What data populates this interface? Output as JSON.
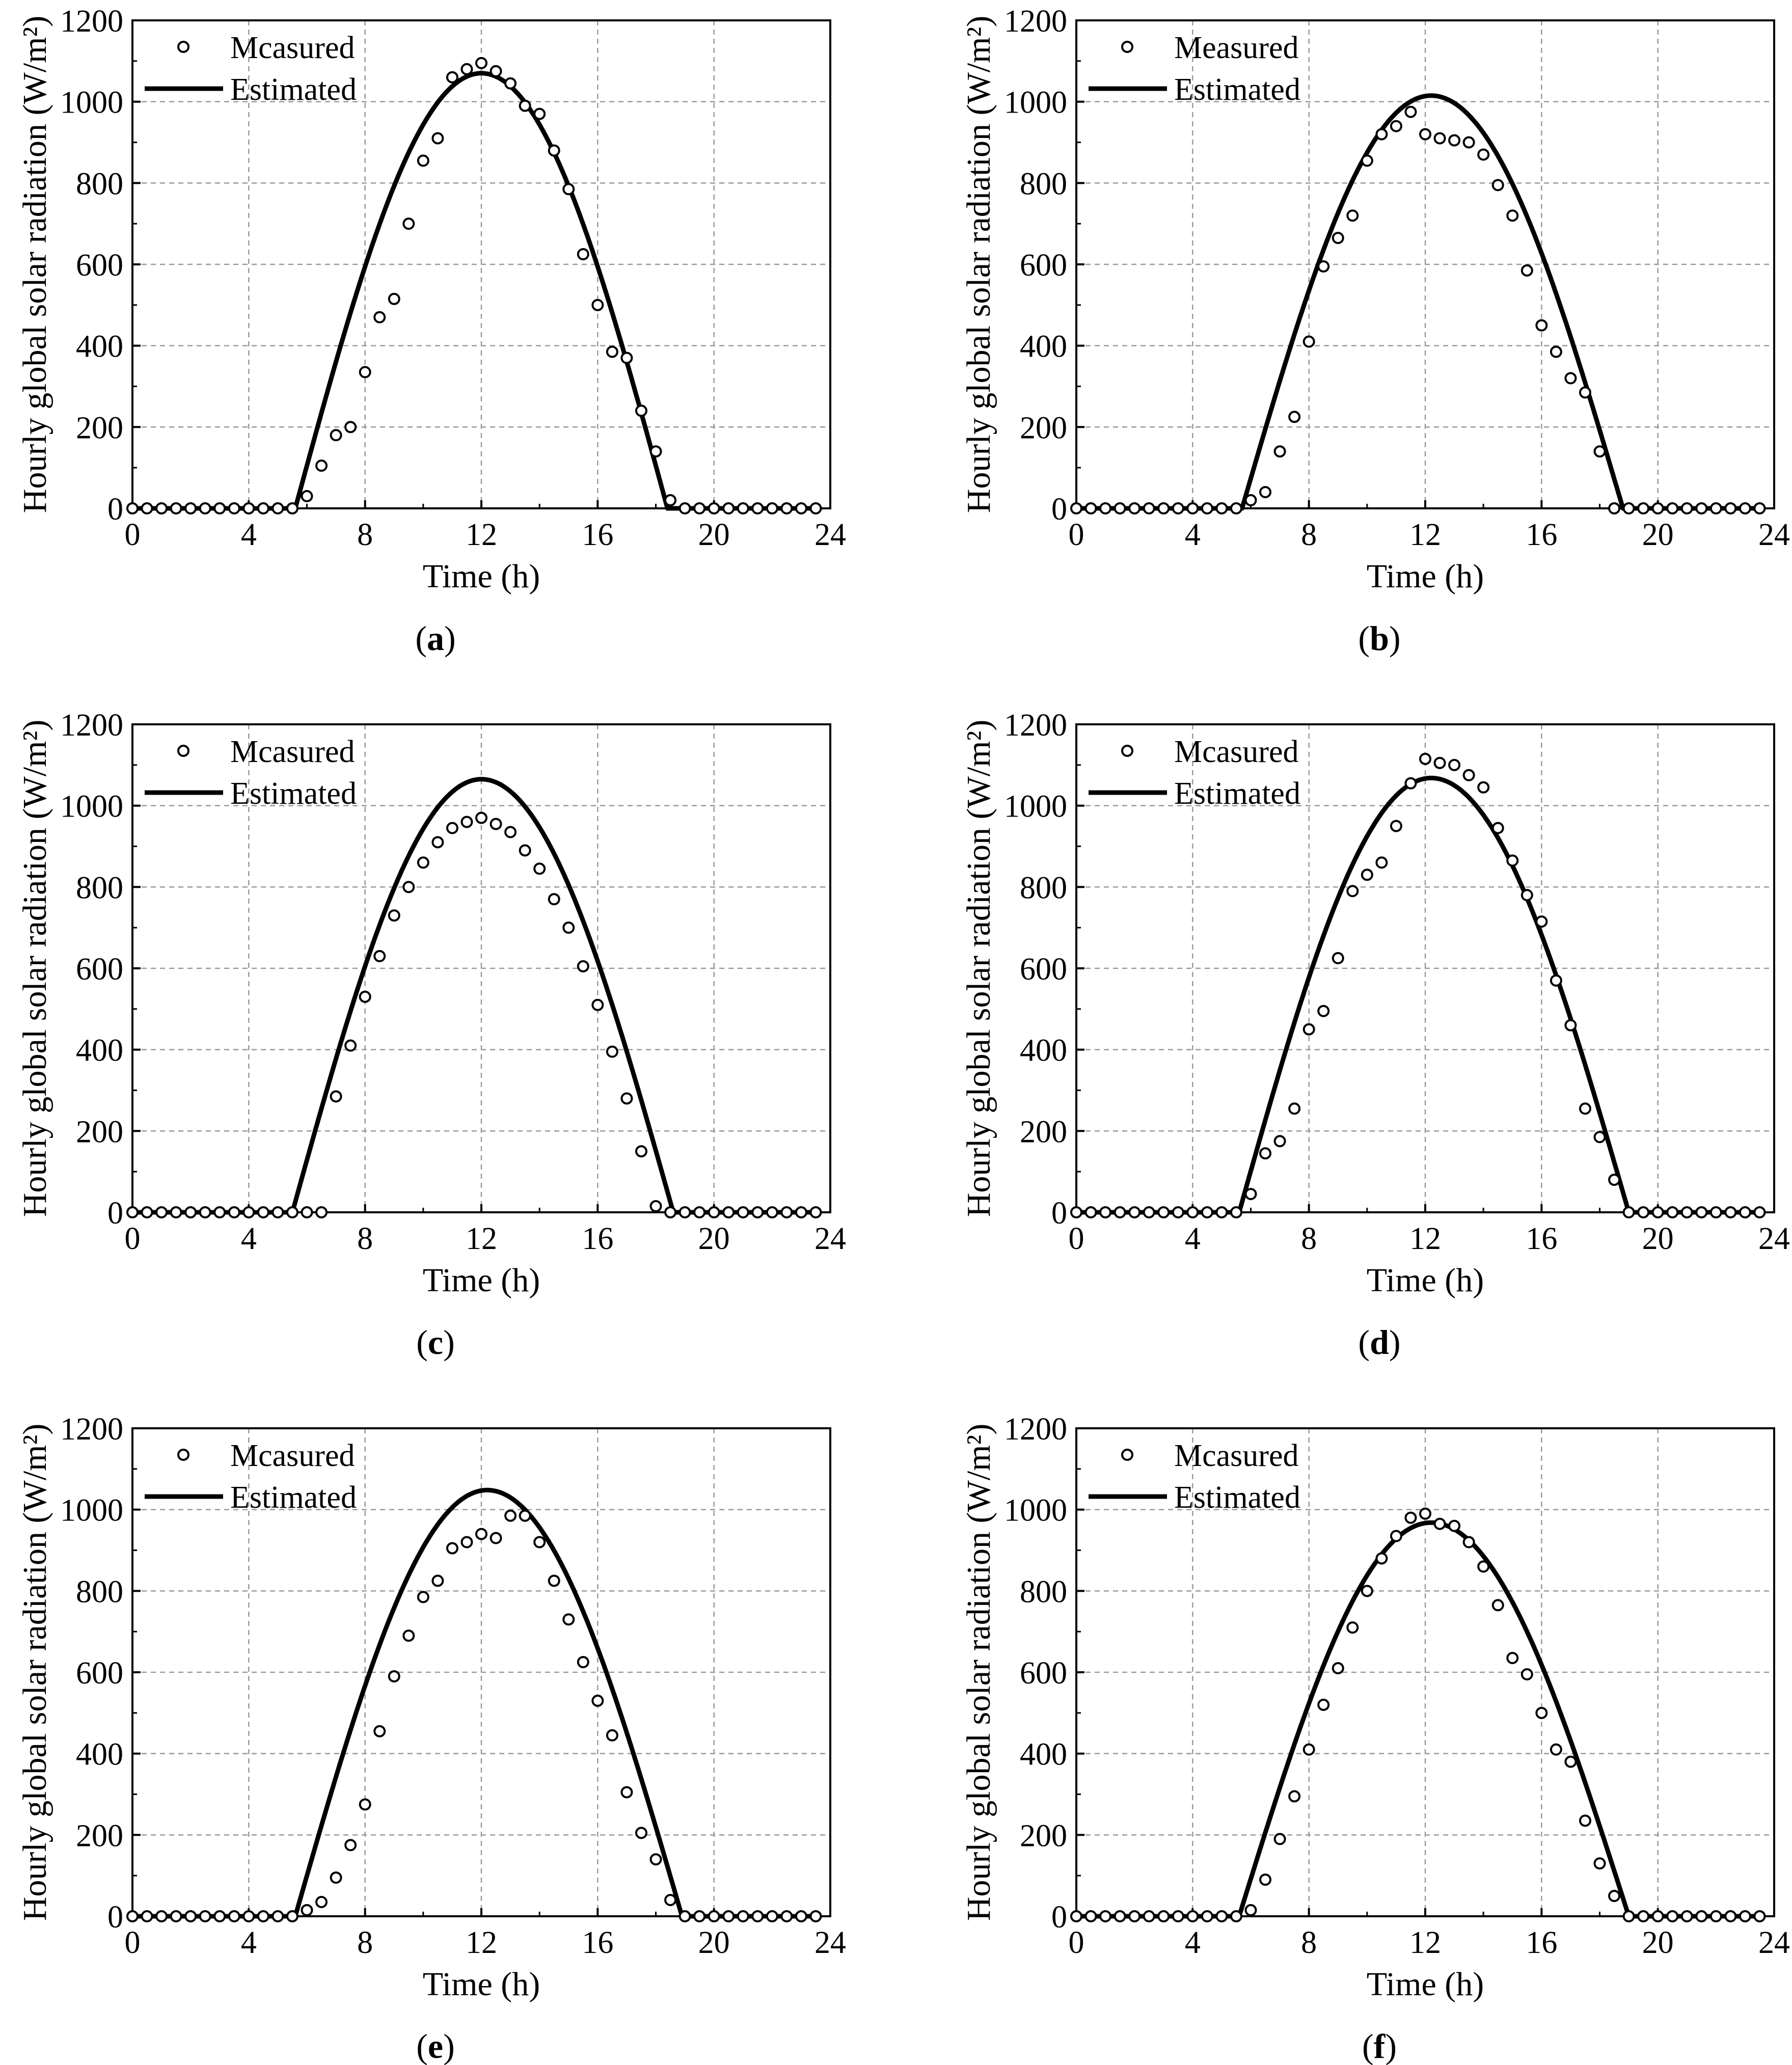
{
  "chart_data": [
    {
      "type": "scatter+line",
      "panel": "(a)",
      "panel_letter": "a",
      "xlabel": "Time (h)",
      "ylabel": "Hourly global solar radiation (W/m²)",
      "xlim": [
        0,
        24
      ],
      "ylim": [
        0,
        1200
      ],
      "xticks": [
        "0",
        "4",
        "8",
        "12",
        "16",
        "20",
        "24"
      ],
      "yticks": [
        "0",
        "200",
        "400",
        "600",
        "800",
        "1000",
        "1200"
      ],
      "grid": "dashed",
      "legend_position": "top-left",
      "series": [
        {
          "name": "Mcasured",
          "style": "open-circle",
          "x": [
            0,
            0.5,
            1,
            1.5,
            2,
            2.5,
            3,
            3.5,
            4,
            4.5,
            5,
            5.5,
            6,
            6.5,
            7,
            7.5,
            8,
            8.5,
            9,
            9.5,
            10,
            10.5,
            11,
            11.5,
            12,
            12.5,
            13,
            13.5,
            14,
            14.5,
            15,
            15.5,
            16,
            16.5,
            17,
            17.5,
            18,
            18.5,
            19,
            19.5,
            20,
            20.5,
            21,
            21.5,
            22,
            22.5,
            23,
            23.5
          ],
          "y": [
            0,
            0,
            0,
            0,
            0,
            0,
            0,
            0,
            0,
            0,
            0,
            0,
            30,
            105,
            180,
            200,
            335,
            470,
            515,
            700,
            855,
            910,
            1060,
            1080,
            1095,
            1075,
            1045,
            990,
            970,
            880,
            785,
            625,
            500,
            385,
            370,
            240,
            140,
            20,
            0,
            0,
            0,
            0,
            0,
            0,
            0,
            0,
            0,
            0
          ]
        },
        {
          "name": "Estimated",
          "style": "line",
          "sunrise": 5.6,
          "sunset": 18.4,
          "peak_time": 12.0,
          "peak": 1070,
          "y0_hours": [
            0,
            5.6
          ]
        }
      ]
    },
    {
      "type": "scatter+line",
      "panel": "(b)",
      "panel_letter": "b",
      "xlabel": "Time (h)",
      "ylabel": "Hourly global solar radiation (W/m²)",
      "xlim": [
        0,
        24
      ],
      "ylim": [
        0,
        1200
      ],
      "xticks": [
        "0",
        "4",
        "8",
        "12",
        "16",
        "20",
        "24"
      ],
      "yticks": [
        "0",
        "200",
        "400",
        "600",
        "800",
        "1000",
        "1200"
      ],
      "grid": "dashed",
      "legend_position": "top-left",
      "series": [
        {
          "name": "Measured",
          "style": "open-circle",
          "x": [
            0,
            0.5,
            1,
            1.5,
            2,
            2.5,
            3,
            3.5,
            4,
            4.5,
            5,
            5.5,
            6,
            6.5,
            7,
            7.5,
            8,
            8.5,
            9,
            9.5,
            10,
            10.5,
            11,
            11.5,
            12,
            12.5,
            13,
            13.5,
            14,
            14.5,
            15,
            15.5,
            16,
            16.5,
            17,
            17.5,
            18,
            18.5,
            19,
            19.5,
            20,
            20.5,
            21,
            21.5,
            22,
            22.5,
            23,
            23.5
          ],
          "y": [
            0,
            0,
            0,
            0,
            0,
            0,
            0,
            0,
            0,
            0,
            0,
            0,
            20,
            40,
            140,
            225,
            410,
            595,
            665,
            720,
            855,
            920,
            940,
            975,
            920,
            910,
            905,
            900,
            870,
            795,
            720,
            585,
            450,
            385,
            320,
            285,
            140,
            0,
            0,
            0,
            0,
            0,
            0,
            0,
            0,
            0,
            0,
            0
          ]
        },
        {
          "name": "Estimated",
          "style": "line",
          "sunrise": 5.7,
          "sunset": 18.8,
          "peak_time": 12.2,
          "peak": 1015
        }
      ]
    },
    {
      "type": "scatter+line",
      "panel": "(c)",
      "panel_letter": "c",
      "xlabel": "Time (h)",
      "ylabel": "Hourly global solar radiation (W/m²)",
      "xlim": [
        0,
        24
      ],
      "ylim": [
        0,
        1200
      ],
      "xticks": [
        "0",
        "4",
        "8",
        "12",
        "16",
        "20",
        "24"
      ],
      "yticks": [
        "0",
        "200",
        "400",
        "600",
        "800",
        "1000",
        "1200"
      ],
      "grid": "dashed",
      "legend_position": "top-left",
      "series": [
        {
          "name": "Mcasured",
          "style": "open-circle",
          "x": [
            0,
            0.5,
            1,
            1.5,
            2,
            2.5,
            3,
            3.5,
            4,
            4.5,
            5,
            5.5,
            6,
            6.5,
            7,
            7.5,
            8,
            8.5,
            9,
            9.5,
            10,
            10.5,
            11,
            11.5,
            12,
            12.5,
            13,
            13.5,
            14,
            14.5,
            15,
            15.5,
            16,
            16.5,
            17,
            17.5,
            18,
            18.5,
            19,
            19.5,
            20,
            20.5,
            21,
            21.5,
            22,
            22.5,
            23,
            23.5
          ],
          "y": [
            0,
            0,
            0,
            0,
            0,
            0,
            0,
            0,
            0,
            0,
            0,
            0,
            0,
            0,
            285,
            410,
            530,
            630,
            730,
            800,
            860,
            910,
            945,
            960,
            970,
            955,
            935,
            890,
            845,
            770,
            700,
            605,
            510,
            395,
            280,
            150,
            15,
            0,
            0,
            0,
            0,
            0,
            0,
            0,
            0,
            0,
            0,
            0
          ]
        },
        {
          "name": "Estimated",
          "style": "line",
          "sunrise": 5.5,
          "sunset": 18.6,
          "peak_time": 12.0,
          "peak": 1065
        }
      ]
    },
    {
      "type": "scatter+line",
      "panel": "(d)",
      "panel_letter": "d",
      "xlabel": "Time (h)",
      "ylabel": "Hourly global solar radiation (W/m²)",
      "xlim": [
        0,
        24
      ],
      "ylim": [
        0,
        1200
      ],
      "xticks": [
        "0",
        "4",
        "8",
        "12",
        "16",
        "20",
        "24"
      ],
      "yticks": [
        "0",
        "200",
        "400",
        "600",
        "800",
        "1000",
        "1200"
      ],
      "grid": "dashed",
      "legend_position": "top-left",
      "series": [
        {
          "name": "Mcasured",
          "style": "open-circle",
          "x": [
            0,
            0.5,
            1,
            1.5,
            2,
            2.5,
            3,
            3.5,
            4,
            4.5,
            5,
            5.5,
            6,
            6.5,
            7,
            7.5,
            8,
            8.5,
            9,
            9.5,
            10,
            10.5,
            11,
            11.5,
            12,
            12.5,
            13,
            13.5,
            14,
            14.5,
            15,
            15.5,
            16,
            16.5,
            17,
            17.5,
            18,
            18.5,
            19,
            19.5,
            20,
            20.5,
            21,
            21.5,
            22,
            22.5,
            23,
            23.5
          ],
          "y": [
            0,
            0,
            0,
            0,
            0,
            0,
            0,
            0,
            0,
            0,
            0,
            0,
            45,
            145,
            175,
            255,
            450,
            495,
            625,
            790,
            830,
            860,
            950,
            1055,
            1115,
            1105,
            1100,
            1075,
            1045,
            945,
            865,
            780,
            715,
            570,
            460,
            255,
            185,
            80,
            0,
            0,
            0,
            0,
            0,
            0,
            0,
            0,
            0,
            0
          ]
        },
        {
          "name": "Estimated",
          "style": "line",
          "sunrise": 5.6,
          "sunset": 19.0,
          "peak_time": 12.2,
          "peak": 1068
        }
      ]
    },
    {
      "type": "scatter+line",
      "panel": "(e)",
      "panel_letter": "e",
      "xlabel": "Time (h)",
      "ylabel": "Hourly global solar radiation (W/m²)",
      "xlim": [
        0,
        24
      ],
      "ylim": [
        0,
        1200
      ],
      "xticks": [
        "0",
        "4",
        "8",
        "12",
        "16",
        "20",
        "24"
      ],
      "yticks": [
        "0",
        "200",
        "400",
        "600",
        "800",
        "1000",
        "1200"
      ],
      "grid": "dashed",
      "legend_position": "top-left",
      "series": [
        {
          "name": "Mcasured",
          "style": "open-circle",
          "x": [
            0,
            0.5,
            1,
            1.5,
            2,
            2.5,
            3,
            3.5,
            4,
            4.5,
            5,
            5.5,
            6,
            6.5,
            7,
            7.5,
            8,
            8.5,
            9,
            9.5,
            10,
            10.5,
            11,
            11.5,
            12,
            12.5,
            13,
            13.5,
            14,
            14.5,
            15,
            15.5,
            16,
            16.5,
            17,
            17.5,
            18,
            18.5,
            19,
            19.5,
            20,
            20.5,
            21,
            21.5,
            22,
            22.5,
            23,
            23.5
          ],
          "y": [
            0,
            0,
            0,
            0,
            0,
            0,
            0,
            0,
            0,
            0,
            0,
            0,
            15,
            35,
            95,
            175,
            275,
            455,
            590,
            690,
            785,
            825,
            905,
            920,
            940,
            930,
            985,
            985,
            920,
            825,
            730,
            625,
            530,
            445,
            305,
            205,
            140,
            40,
            0,
            0,
            0,
            0,
            0,
            0,
            0,
            0,
            0,
            0
          ]
        },
        {
          "name": "Estimated",
          "style": "line",
          "sunrise": 5.6,
          "sunset": 18.9,
          "peak_time": 12.2,
          "peak": 1048
        }
      ]
    },
    {
      "type": "scatter+line",
      "panel": "(f)",
      "panel_letter": "f",
      "xlabel": "Time (h)",
      "ylabel": "Hourly global solar radiation (W/m²)",
      "xlim": [
        0,
        24
      ],
      "ylim": [
        0,
        1200
      ],
      "xticks": [
        "0",
        "4",
        "8",
        "12",
        "16",
        "20",
        "24"
      ],
      "yticks": [
        "0",
        "200",
        "400",
        "600",
        "800",
        "1000",
        "1200"
      ],
      "grid": "dashed",
      "legend_position": "top-left",
      "series": [
        {
          "name": "Mcasured",
          "style": "open-circle",
          "x": [
            0,
            0.5,
            1,
            1.5,
            2,
            2.5,
            3,
            3.5,
            4,
            4.5,
            5,
            5.5,
            6,
            6.5,
            7,
            7.5,
            8,
            8.5,
            9,
            9.5,
            10,
            10.5,
            11,
            11.5,
            12,
            12.5,
            13,
            13.5,
            14,
            14.5,
            15,
            15.5,
            16,
            16.5,
            17,
            17.5,
            18,
            18.5,
            19,
            19.5,
            20,
            20.5,
            21,
            21.5,
            22,
            22.5,
            23,
            23.5
          ],
          "y": [
            0,
            0,
            0,
            0,
            0,
            0,
            0,
            0,
            0,
            0,
            0,
            0,
            15,
            90,
            190,
            295,
            410,
            520,
            610,
            710,
            800,
            880,
            935,
            980,
            990,
            965,
            960,
            920,
            860,
            765,
            635,
            595,
            500,
            410,
            380,
            235,
            130,
            50,
            0,
            0,
            0,
            0,
            0,
            0,
            0,
            0,
            0,
            0
          ]
        },
        {
          "name": "Estimated",
          "style": "line",
          "sunrise": 5.6,
          "sunset": 19.0,
          "peak_time": 12.2,
          "peak": 968
        }
      ]
    }
  ]
}
